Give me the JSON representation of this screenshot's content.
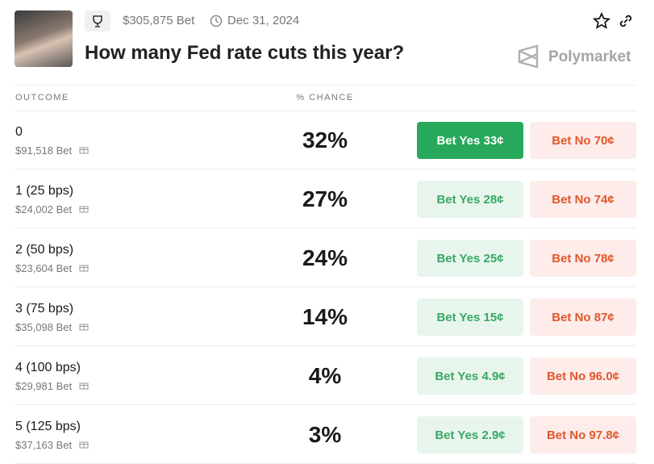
{
  "header": {
    "volume": "$305,875 Bet",
    "date": "Dec 31, 2024",
    "title": "How many Fed rate cuts this year?",
    "brand": "Polymarket"
  },
  "table": {
    "columns": [
      "OUTCOME",
      "% CHANCE"
    ],
    "rows": [
      {
        "name": "0",
        "volume": "$91,518 Bet",
        "chance": "32%",
        "yes": "Bet Yes 33¢",
        "no": "Bet No 70¢"
      },
      {
        "name": "1 (25 bps)",
        "volume": "$24,002 Bet",
        "chance": "27%",
        "yes": "Bet Yes 28¢",
        "no": "Bet No 74¢"
      },
      {
        "name": "2 (50 bps)",
        "volume": "$23,604 Bet",
        "chance": "24%",
        "yes": "Bet Yes 25¢",
        "no": "Bet No 78¢"
      },
      {
        "name": "3 (75 bps)",
        "volume": "$35,098 Bet",
        "chance": "14%",
        "yes": "Bet Yes 15¢",
        "no": "Bet No 87¢"
      },
      {
        "name": "4 (100 bps)",
        "volume": "$29,981 Bet",
        "chance": "4%",
        "yes": "Bet Yes 4.9¢",
        "no": "Bet No 96.0¢"
      },
      {
        "name": "5 (125 bps)",
        "volume": "$37,163 Bet",
        "chance": "3%",
        "yes": "Bet Yes 2.9¢",
        "no": "Bet No 97.8¢"
      }
    ]
  }
}
